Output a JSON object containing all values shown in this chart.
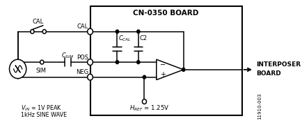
{
  "title": "CN-0350 BOARD",
  "bg_color": "#ffffff",
  "line_color": "#000000",
  "fig_width": 4.35,
  "fig_height": 1.81,
  "dpi": 100,
  "label_vin": "$V_{IN}$ = 1V PEAK",
  "label_freq": "1kHz SINE WAVE",
  "label_interposer": "INTERPOSER",
  "label_board": "BOARD",
  "label_href": "$H_{REF}$ = 1.25V",
  "label_cal": "CAL",
  "label_ccal": "$C_{CAL}$",
  "label_c2": "C2",
  "label_csim": "$C_{SIM}$",
  "label_pos": "POS",
  "label_neg": "NEG",
  "label_sim": "SIM",
  "watermark": "11910-003"
}
